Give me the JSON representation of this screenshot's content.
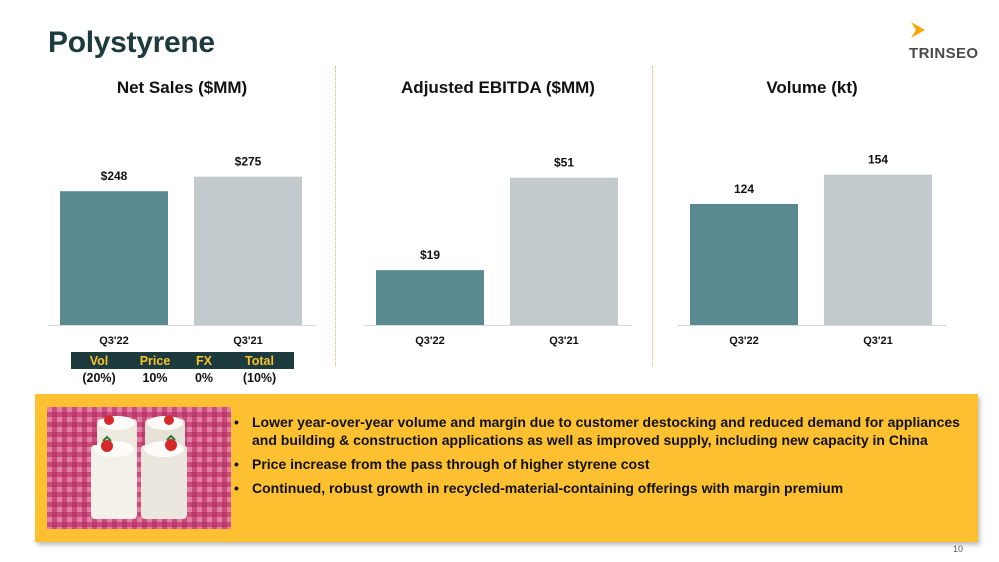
{
  "slide": {
    "title": "Polystyrene",
    "page_number": "10"
  },
  "logo": {
    "text": "TRINSEO",
    "colors": {
      "text": "#4a4a4a",
      "chevron": "#f5a800"
    }
  },
  "colors": {
    "current_bar": "#588a8f",
    "prior_bar": "#c3cacd",
    "callout_bg": "#fcc031",
    "header_bg": "#1d3a3c",
    "header_text": "#f5c22e"
  },
  "chart_data": [
    {
      "type": "bar",
      "title": "Net Sales ($MM)",
      "categories": [
        "Q3'22",
        "Q3'21"
      ],
      "values": [
        248,
        275
      ],
      "data_labels": [
        "$248",
        "$275"
      ],
      "ylim": [
        0,
        380
      ],
      "grid": false
    },
    {
      "type": "bar",
      "title": "Adjusted EBITDA ($MM)",
      "categories": [
        "Q3'22",
        "Q3'21"
      ],
      "values": [
        19,
        51
      ],
      "data_labels": [
        "$19",
        "$51"
      ],
      "ylim": [
        0,
        71
      ],
      "grid": false
    },
    {
      "type": "bar",
      "title": "Volume (kt)",
      "categories": [
        "Q3'22",
        "Q3'21"
      ],
      "values": [
        124,
        154
      ],
      "data_labels": [
        "124",
        "154"
      ],
      "ylim": [
        0,
        210
      ],
      "grid": false
    }
  ],
  "bridge_table": {
    "headers": [
      "Vol",
      "Price",
      "FX",
      "Total"
    ],
    "values": [
      "(20%)",
      "10%",
      "0%",
      "(10%)"
    ]
  },
  "callout": {
    "image": "yogurt-cups-photo",
    "bullets": [
      "Lower year-over-year volume and margin due to customer destocking and reduced demand for appliances and building & construction applications as well as improved supply, including new capacity in China",
      "Price increase from the pass through of higher styrene cost",
      "Continued, robust growth in recycled-material-containing offerings with margin premium"
    ]
  }
}
